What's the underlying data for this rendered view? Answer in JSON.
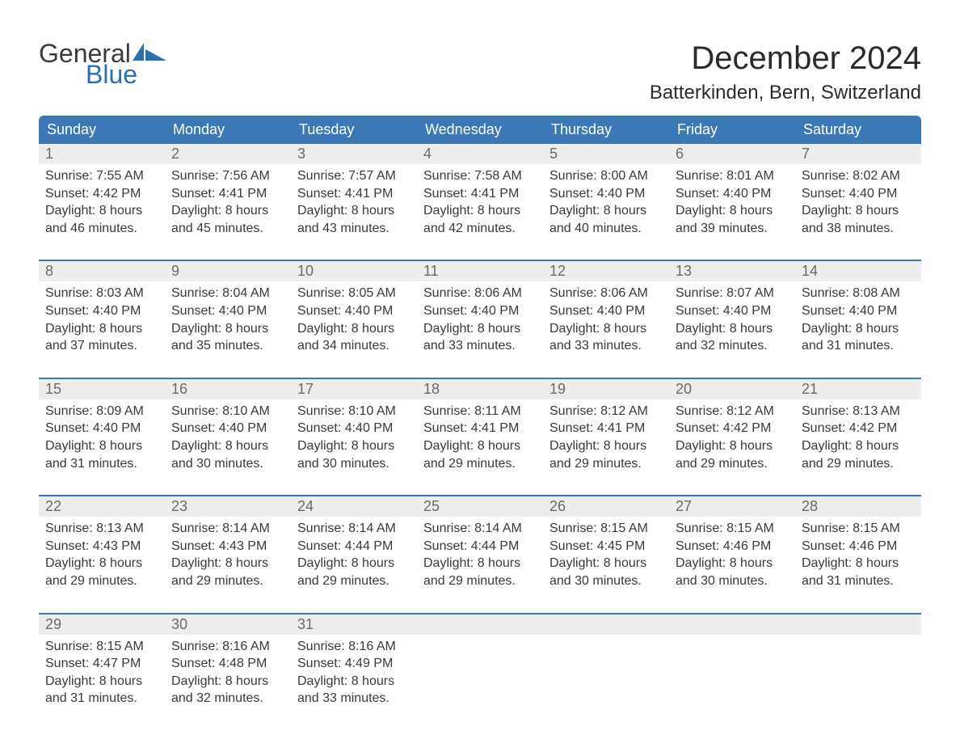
{
  "brand": {
    "word1": "General",
    "word2": "Blue",
    "sail_color": "#2b6fb0",
    "text_color": "#3b3b3b"
  },
  "title": "December 2024",
  "location": "Batterkinden, Bern, Switzerland",
  "colors": {
    "header_bg": "#3b78b5",
    "header_text": "#ffffff",
    "daynum_bg": "#ededed",
    "daynum_text": "#6a6a6a",
    "week_border": "#3b78b5",
    "body_text": "#3a3a3a"
  },
  "day_names": [
    "Sunday",
    "Monday",
    "Tuesday",
    "Wednesday",
    "Thursday",
    "Friday",
    "Saturday"
  ],
  "weeks": [
    [
      {
        "n": "1",
        "sunrise": "Sunrise: 7:55 AM",
        "sunset": "Sunset: 4:42 PM",
        "d1": "Daylight: 8 hours",
        "d2": "and 46 minutes."
      },
      {
        "n": "2",
        "sunrise": "Sunrise: 7:56 AM",
        "sunset": "Sunset: 4:41 PM",
        "d1": "Daylight: 8 hours",
        "d2": "and 45 minutes."
      },
      {
        "n": "3",
        "sunrise": "Sunrise: 7:57 AM",
        "sunset": "Sunset: 4:41 PM",
        "d1": "Daylight: 8 hours",
        "d2": "and 43 minutes."
      },
      {
        "n": "4",
        "sunrise": "Sunrise: 7:58 AM",
        "sunset": "Sunset: 4:41 PM",
        "d1": "Daylight: 8 hours",
        "d2": "and 42 minutes."
      },
      {
        "n": "5",
        "sunrise": "Sunrise: 8:00 AM",
        "sunset": "Sunset: 4:40 PM",
        "d1": "Daylight: 8 hours",
        "d2": "and 40 minutes."
      },
      {
        "n": "6",
        "sunrise": "Sunrise: 8:01 AM",
        "sunset": "Sunset: 4:40 PM",
        "d1": "Daylight: 8 hours",
        "d2": "and 39 minutes."
      },
      {
        "n": "7",
        "sunrise": "Sunrise: 8:02 AM",
        "sunset": "Sunset: 4:40 PM",
        "d1": "Daylight: 8 hours",
        "d2": "and 38 minutes."
      }
    ],
    [
      {
        "n": "8",
        "sunrise": "Sunrise: 8:03 AM",
        "sunset": "Sunset: 4:40 PM",
        "d1": "Daylight: 8 hours",
        "d2": "and 37 minutes."
      },
      {
        "n": "9",
        "sunrise": "Sunrise: 8:04 AM",
        "sunset": "Sunset: 4:40 PM",
        "d1": "Daylight: 8 hours",
        "d2": "and 35 minutes."
      },
      {
        "n": "10",
        "sunrise": "Sunrise: 8:05 AM",
        "sunset": "Sunset: 4:40 PM",
        "d1": "Daylight: 8 hours",
        "d2": "and 34 minutes."
      },
      {
        "n": "11",
        "sunrise": "Sunrise: 8:06 AM",
        "sunset": "Sunset: 4:40 PM",
        "d1": "Daylight: 8 hours",
        "d2": "and 33 minutes."
      },
      {
        "n": "12",
        "sunrise": "Sunrise: 8:06 AM",
        "sunset": "Sunset: 4:40 PM",
        "d1": "Daylight: 8 hours",
        "d2": "and 33 minutes."
      },
      {
        "n": "13",
        "sunrise": "Sunrise: 8:07 AM",
        "sunset": "Sunset: 4:40 PM",
        "d1": "Daylight: 8 hours",
        "d2": "and 32 minutes."
      },
      {
        "n": "14",
        "sunrise": "Sunrise: 8:08 AM",
        "sunset": "Sunset: 4:40 PM",
        "d1": "Daylight: 8 hours",
        "d2": "and 31 minutes."
      }
    ],
    [
      {
        "n": "15",
        "sunrise": "Sunrise: 8:09 AM",
        "sunset": "Sunset: 4:40 PM",
        "d1": "Daylight: 8 hours",
        "d2": "and 31 minutes."
      },
      {
        "n": "16",
        "sunrise": "Sunrise: 8:10 AM",
        "sunset": "Sunset: 4:40 PM",
        "d1": "Daylight: 8 hours",
        "d2": "and 30 minutes."
      },
      {
        "n": "17",
        "sunrise": "Sunrise: 8:10 AM",
        "sunset": "Sunset: 4:40 PM",
        "d1": "Daylight: 8 hours",
        "d2": "and 30 minutes."
      },
      {
        "n": "18",
        "sunrise": "Sunrise: 8:11 AM",
        "sunset": "Sunset: 4:41 PM",
        "d1": "Daylight: 8 hours",
        "d2": "and 29 minutes."
      },
      {
        "n": "19",
        "sunrise": "Sunrise: 8:12 AM",
        "sunset": "Sunset: 4:41 PM",
        "d1": "Daylight: 8 hours",
        "d2": "and 29 minutes."
      },
      {
        "n": "20",
        "sunrise": "Sunrise: 8:12 AM",
        "sunset": "Sunset: 4:42 PM",
        "d1": "Daylight: 8 hours",
        "d2": "and 29 minutes."
      },
      {
        "n": "21",
        "sunrise": "Sunrise: 8:13 AM",
        "sunset": "Sunset: 4:42 PM",
        "d1": "Daylight: 8 hours",
        "d2": "and 29 minutes."
      }
    ],
    [
      {
        "n": "22",
        "sunrise": "Sunrise: 8:13 AM",
        "sunset": "Sunset: 4:43 PM",
        "d1": "Daylight: 8 hours",
        "d2": "and 29 minutes."
      },
      {
        "n": "23",
        "sunrise": "Sunrise: 8:14 AM",
        "sunset": "Sunset: 4:43 PM",
        "d1": "Daylight: 8 hours",
        "d2": "and 29 minutes."
      },
      {
        "n": "24",
        "sunrise": "Sunrise: 8:14 AM",
        "sunset": "Sunset: 4:44 PM",
        "d1": "Daylight: 8 hours",
        "d2": "and 29 minutes."
      },
      {
        "n": "25",
        "sunrise": "Sunrise: 8:14 AM",
        "sunset": "Sunset: 4:44 PM",
        "d1": "Daylight: 8 hours",
        "d2": "and 29 minutes."
      },
      {
        "n": "26",
        "sunrise": "Sunrise: 8:15 AM",
        "sunset": "Sunset: 4:45 PM",
        "d1": "Daylight: 8 hours",
        "d2": "and 30 minutes."
      },
      {
        "n": "27",
        "sunrise": "Sunrise: 8:15 AM",
        "sunset": "Sunset: 4:46 PM",
        "d1": "Daylight: 8 hours",
        "d2": "and 30 minutes."
      },
      {
        "n": "28",
        "sunrise": "Sunrise: 8:15 AM",
        "sunset": "Sunset: 4:46 PM",
        "d1": "Daylight: 8 hours",
        "d2": "and 31 minutes."
      }
    ],
    [
      {
        "n": "29",
        "sunrise": "Sunrise: 8:15 AM",
        "sunset": "Sunset: 4:47 PM",
        "d1": "Daylight: 8 hours",
        "d2": "and 31 minutes."
      },
      {
        "n": "30",
        "sunrise": "Sunrise: 8:16 AM",
        "sunset": "Sunset: 4:48 PM",
        "d1": "Daylight: 8 hours",
        "d2": "and 32 minutes."
      },
      {
        "n": "31",
        "sunrise": "Sunrise: 8:16 AM",
        "sunset": "Sunset: 4:49 PM",
        "d1": "Daylight: 8 hours",
        "d2": "and 33 minutes."
      },
      null,
      null,
      null,
      null
    ]
  ]
}
